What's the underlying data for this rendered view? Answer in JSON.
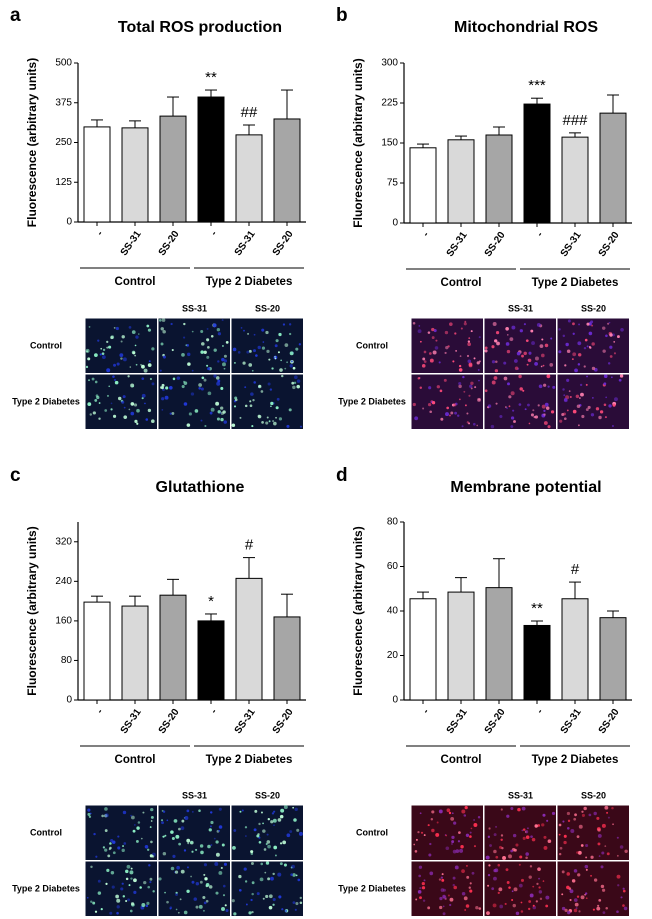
{
  "chart_data": [
    {
      "type": "bar",
      "panel": "a",
      "title": "Total ROS production",
      "y_label": "Fluorescence (arbitrary units)",
      "categories": [
        "-",
        "SS-31",
        "SS-20",
        "-",
        "SS-31",
        "SS-20"
      ],
      "groups": [
        "Control",
        "Type 2 Diabetes"
      ],
      "values": [
        299,
        296,
        333,
        393,
        274,
        324
      ],
      "errors": [
        22,
        22,
        60,
        22,
        31,
        91
      ],
      "colors": [
        "#ffffff",
        "#d9d9d9",
        "#a6a6a6",
        "#000000",
        "#d9d9d9",
        "#a6a6a6"
      ],
      "annotations": [
        null,
        null,
        null,
        "**",
        "##",
        null
      ],
      "ylim": [
        0,
        500
      ],
      "yticks": [
        0,
        125,
        250,
        375,
        500
      ],
      "micrograph": {
        "columns": [
          "SS-31",
          "SS-20"
        ],
        "rows": [
          "Control",
          "Type 2 Diabetes"
        ]
      }
    },
    {
      "type": "bar",
      "panel": "b",
      "title": "Mitochondrial ROS",
      "y_label": "Fluorescence (arbitrary units)",
      "categories": [
        "-",
        "SS-31",
        "SS-20",
        "-",
        "SS-31",
        "SS-20"
      ],
      "groups": [
        "Control",
        "Type 2 Diabetes"
      ],
      "values": [
        141,
        156,
        165,
        223,
        161,
        206
      ],
      "errors": [
        7,
        7,
        15,
        11,
        8,
        34
      ],
      "colors": [
        "#ffffff",
        "#d9d9d9",
        "#a6a6a6",
        "#000000",
        "#d9d9d9",
        "#a6a6a6"
      ],
      "annotations": [
        null,
        null,
        null,
        "***",
        "###",
        null
      ],
      "ylim": [
        0,
        300
      ],
      "yticks": [
        0,
        75,
        150,
        225,
        300
      ],
      "micrograph": {
        "columns": [
          "SS-31",
          "SS-20"
        ],
        "rows": [
          "Control",
          "Type 2 Diabetes"
        ]
      }
    },
    {
      "type": "bar",
      "panel": "c",
      "title": "Glutathione",
      "y_label": "Fluorescence (arbitrary units)",
      "categories": [
        "-",
        "SS-31",
        "SS-20",
        "-",
        "SS-31",
        "SS-20"
      ],
      "groups": [
        "Control",
        "Type 2 Diabetes"
      ],
      "values": [
        198,
        190,
        212,
        160,
        246,
        168
      ],
      "errors": [
        12,
        20,
        32,
        14,
        42,
        46
      ],
      "colors": [
        "#ffffff",
        "#d9d9d9",
        "#a6a6a6",
        "#000000",
        "#d9d9d9",
        "#a6a6a6"
      ],
      "annotations": [
        null,
        null,
        null,
        "*",
        "#",
        null
      ],
      "ylim": [
        0,
        360
      ],
      "yticks": [
        0,
        80,
        160,
        240,
        320
      ],
      "micrograph": {
        "columns": [
          "SS-31",
          "SS-20"
        ],
        "rows": [
          "Control",
          "Type 2 Diabetes"
        ]
      }
    },
    {
      "type": "bar",
      "panel": "d",
      "title": "Membrane potential",
      "y_label": "Fluorescence (arbitrary units)",
      "categories": [
        "-",
        "SS-31",
        "SS-20",
        "-",
        "SS-31",
        "SS-20"
      ],
      "groups": [
        "Control",
        "Type 2 Diabetes"
      ],
      "values": [
        45.5,
        48.5,
        50.5,
        33.5,
        45.5,
        37
      ],
      "errors": [
        3,
        6.5,
        13,
        2,
        7.5,
        3
      ],
      "colors": [
        "#ffffff",
        "#d9d9d9",
        "#a6a6a6",
        "#000000",
        "#d9d9d9",
        "#a6a6a6"
      ],
      "annotations": [
        null,
        null,
        null,
        "**",
        "#",
        null
      ],
      "ylim": [
        0,
        80
      ],
      "yticks": [
        0,
        20,
        40,
        60,
        80
      ],
      "micrograph": {
        "columns": [
          "SS-31",
          "SS-20"
        ],
        "rows": [
          "Control",
          "Type 2 Diabetes"
        ]
      }
    }
  ]
}
